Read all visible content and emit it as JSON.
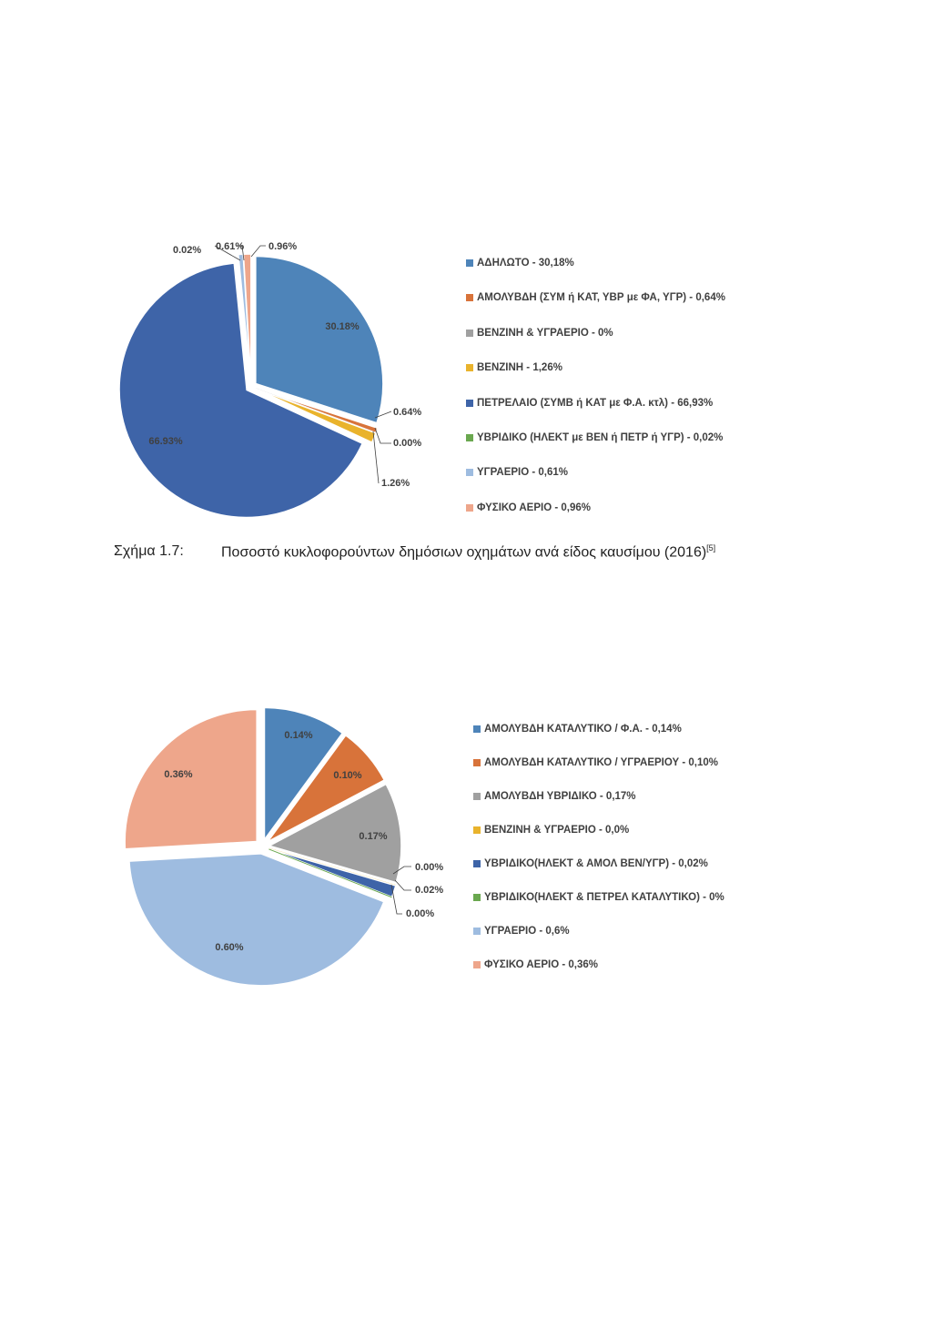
{
  "chart_data": [
    {
      "type": "pie",
      "categories": [
        "ΑΔΗΛΩΤΟ",
        "ΑΜΟΛΥΒΔΗ (ΣΥΜ ή ΚΑΤ, ΥΒΡ με ΦΑ, ΥΓΡ)",
        "ΒΕΝΖΙΝΗ & ΥΓΡΑΕΡΙΟ",
        "ΒΕΝΖΙΝΗ",
        "ΠΕΤΡΕΛΑΙΟ (ΣΥΜΒ ή ΚΑΤ με Φ.Α. κτλ)",
        "ΥΒΡΙΔΙΚΟ (ΗΛΕΚΤ με ΒΕΝ ή ΠΕΤΡ ή ΥΓΡ)",
        "ΥΓΡΑΕΡΙΟ",
        "ΦΥΣΙΚΟ ΑΕΡΙΟ"
      ],
      "values": [
        30.18,
        0.64,
        0.0,
        1.26,
        66.93,
        0.02,
        0.61,
        0.96
      ],
      "data_labels": [
        "30.18%",
        "0.64%",
        "0.00%",
        "1.26%",
        "66.93%",
        "0.02%",
        "0.61%",
        "0.96%"
      ],
      "colors": [
        "#4e84b9",
        "#d8733a",
        "#a0a0a0",
        "#e9b32c",
        "#3e64a8",
        "#6aa84f",
        "#9ebce0",
        "#eea68b"
      ],
      "legend": [
        "ΑΔΗΛΩΤΟ  - 30,18%",
        "ΑΜΟΛΥΒΔΗ (ΣΥΜ ή ΚΑΤ, ΥΒΡ με ΦΑ, ΥΓΡ) - 0,64%",
        "ΒΕΝΖΙΝΗ & ΥΓΡΑΕΡΙΟ  - 0%",
        "ΒΕΝΖΙΝΗ  - 1,26%",
        "ΠΕΤΡΕΛΑΙΟ (ΣΥΜΒ ή ΚΑΤ με Φ.Α. κτλ) - 66,93%",
        "ΥΒΡΙΔΙΚΟ (ΗΛΕΚΤ με ΒΕΝ ή ΠΕΤΡ ή ΥΓΡ) - 0,02%",
        "ΥΓΡΑΕΡΙΟ  - 0,61%",
        "ΦΥΣΙΚΟ ΑΕΡΙΟ  - 0,96%"
      ],
      "legend_placement": "right"
    },
    {
      "type": "pie",
      "categories": [
        "ΑΜΟΛΥΒΔΗ ΚΑΤΑΛΥΤΙΚΟ / Φ.Α.",
        "ΑΜΟΛΥΒΔΗ ΚΑΤΑΛΥΤΙΚΟ / ΥΓΡΑΕΡΙΟΥ",
        "ΑΜΟΛΥΒΔΗ ΥΒΡΙΔΙΚΟ",
        "ΒΕΝΖΙΝΗ & ΥΓΡΑΕΡΙΟ",
        "ΥΒΡΙΔΙΚΟ(ΗΛΕΚΤ & ΑΜΟΛ ΒΕΝ/ΥΓΡ)",
        "ΥΒΡΙΔΙΚΟ(ΗΛΕΚΤ & ΠΕΤΡΕΛ ΚΑΤΑΛΥΤΙΚΟ)",
        "ΥΓΡΑΕΡΙΟ",
        "ΦΥΣΙΚΟ ΑΕΡΙΟ"
      ],
      "values": [
        0.14,
        0.1,
        0.17,
        0.0,
        0.02,
        0.0,
        0.6,
        0.36
      ],
      "data_labels": [
        "0.14%",
        "0.10%",
        "0.17%",
        "0.00%",
        "0.02%",
        "0.00%",
        "0.60%",
        "0.36%"
      ],
      "colors": [
        "#4e84b9",
        "#d8733a",
        "#a0a0a0",
        "#e9b32c",
        "#3e64a8",
        "#6aa84f",
        "#9ebce0",
        "#eea68b"
      ],
      "legend": [
        "ΑΜΟΛΥΒΔΗ ΚΑΤΑΛΥΤΙΚΟ / Φ.Α.  - 0,14%",
        "ΑΜΟΛΥΒΔΗ ΚΑΤΑΛΥΤΙΚΟ / ΥΓΡΑΕΡΙΟΥ  - 0,10%",
        "ΑΜΟΛΥΒΔΗ ΥΒΡΙΔΙΚΟ  - 0,17%",
        "ΒΕΝΖΙΝΗ & ΥΓΡΑΕΡΙΟ  - 0,0%",
        "ΥΒΡΙΔΙΚΟ(ΗΛΕΚΤ & ΑΜΟΛ ΒΕΝ/ΥΓΡ)  - 0,02%",
        "ΥΒΡΙΔΙΚΟ(ΗΛΕΚΤ & ΠΕΤΡΕΛ ΚΑΤΑΛΥΤΙΚΟ)  - 0%",
        "ΥΓΡΑΕΡΙΟ  - 0,6%",
        "ΦΥΣΙΚΟ ΑΕΡΙΟ  - 0,36%"
      ],
      "legend_placement": "right"
    }
  ],
  "caption": {
    "label": "Σχήμα 1.7:",
    "text": "Ποσοστό κυκλοφορούντων δημόσιων οχημάτων ανά είδος καυσίμου (2016)",
    "ref": "[5]"
  }
}
